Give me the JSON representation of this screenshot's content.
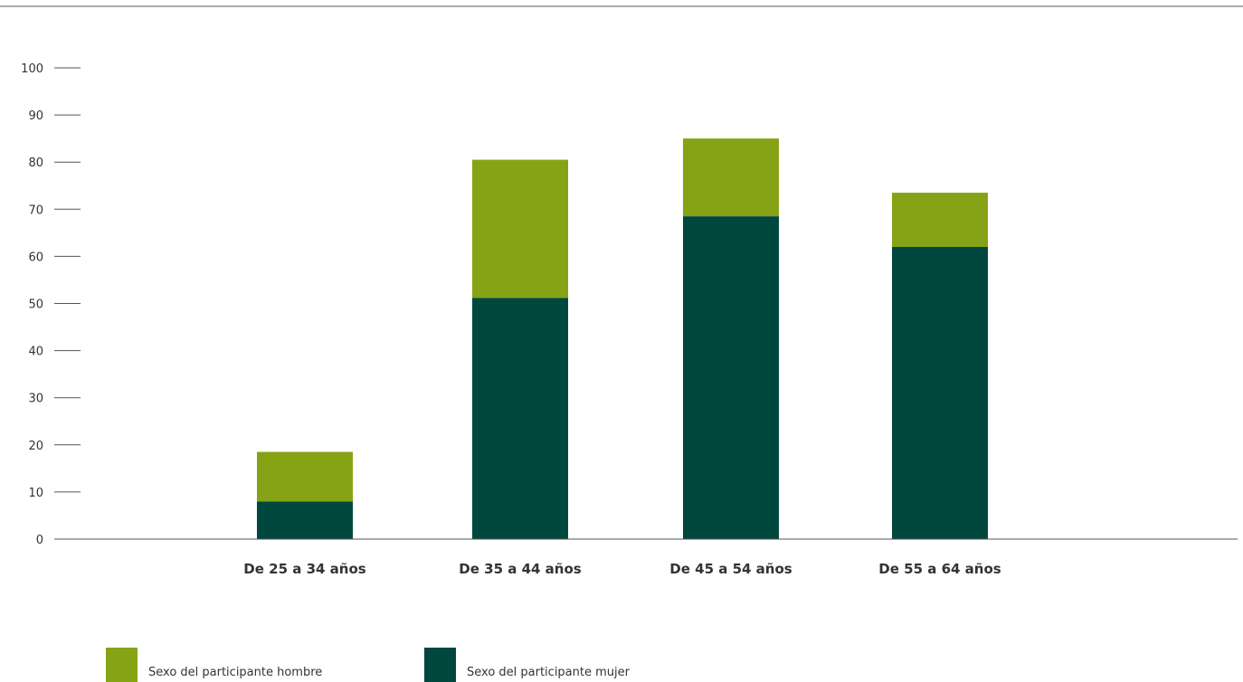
{
  "chart_data": {
    "type": "bar",
    "stacked": true,
    "title": "",
    "xlabel": "",
    "ylabel": "",
    "ylim": [
      0,
      100
    ],
    "yticks": [
      0,
      10,
      20,
      30,
      40,
      50,
      60,
      70,
      80,
      90,
      100
    ],
    "categories": [
      "De 25 a 34 años",
      "De 35 a 44 años",
      "De 45 a 54 años",
      "De 55 a 64 años"
    ],
    "series": [
      {
        "name": "Sexo del participante mujer",
        "color": "#00473e",
        "values": [
          8,
          51.2,
          68.5,
          62
        ]
      },
      {
        "name": "Sexo del participante hombre",
        "color": "#86a315",
        "values": [
          10.5,
          29.3,
          16.5,
          11.5
        ]
      }
    ],
    "legend_order": [
      "Sexo del participante hombre",
      "Sexo del participante mujer"
    ],
    "legend_position": "bottom-left",
    "grid": false
  }
}
